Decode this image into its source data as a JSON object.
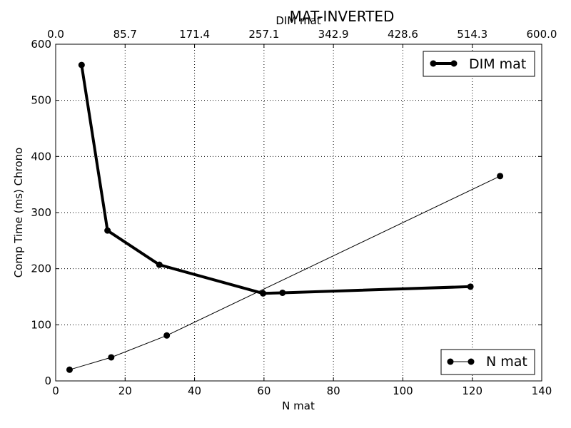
{
  "chart_data": {
    "type": "line",
    "title": "MAT-INVERTED",
    "xlabel": "N mat",
    "ylabel": "Comp Time (ms) Chrono",
    "x2label": "DIM mat",
    "xlim": [
      0,
      140
    ],
    "ylim": [
      0,
      600
    ],
    "x2lim": [
      0,
      600
    ],
    "xticks": [
      "0",
      "20",
      "40",
      "60",
      "80",
      "100",
      "120",
      "140"
    ],
    "yticks": [
      "0",
      "100",
      "200",
      "300",
      "400",
      "500",
      "600"
    ],
    "x2ticks": [
      "0.0",
      "85.7",
      "171.4",
      "257.1",
      "342.9",
      "428.6",
      "514.3",
      "600.0"
    ],
    "grid": true,
    "series": [
      {
        "name": "DIM mat",
        "axis": "x2",
        "x": [
          32,
          64,
          128,
          256,
          280,
          512
        ],
        "y": [
          563,
          268,
          207,
          156,
          157,
          168
        ],
        "color": "#000000",
        "style": "thick",
        "legend_position": "top-right"
      },
      {
        "name": "N mat",
        "axis": "x",
        "x": [
          4,
          16,
          32,
          128
        ],
        "y": [
          20,
          42,
          81,
          365
        ],
        "color": "#000000",
        "style": "thin",
        "legend_position": "bottom-right"
      }
    ]
  }
}
